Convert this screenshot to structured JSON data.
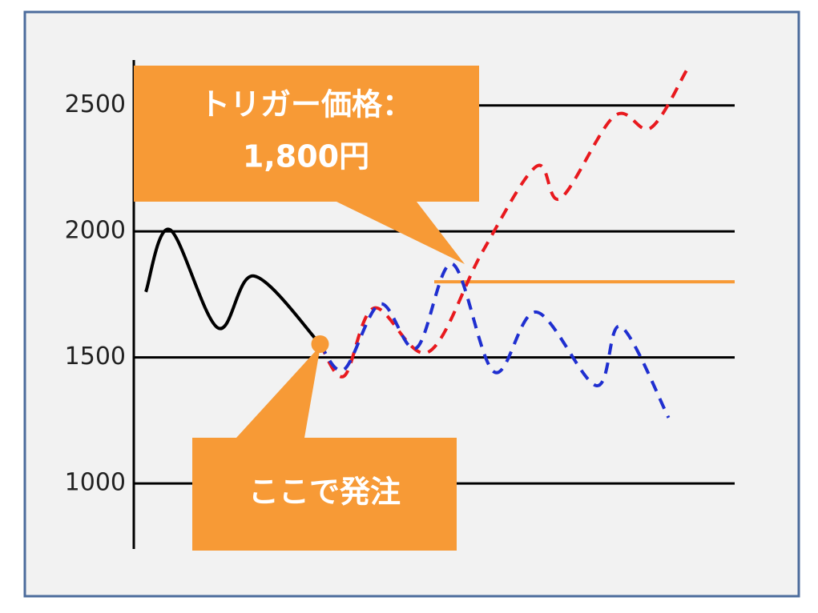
{
  "chart_data": {
    "type": "line",
    "ylim": [
      740,
      2680
    ],
    "yticks": [
      1000,
      1500,
      2000,
      2500
    ],
    "xlim": [
      0,
      100
    ],
    "grid": true,
    "series": [
      {
        "color": "#000000",
        "style": "solid",
        "x": [
          2,
          6,
          14,
          20,
          31
        ],
        "values": [
          1760,
          2007,
          1617,
          1823,
          1553
        ]
      },
      {
        "color": "#1f2fd0",
        "style": "dashed",
        "x": [
          31,
          35,
          41,
          47,
          53,
          60,
          67,
          77,
          81,
          89
        ],
        "values": [
          1553,
          1452,
          1712,
          1537,
          1871,
          1442,
          1680,
          1388,
          1623,
          1261
        ]
      },
      {
        "color": "#e8191e",
        "style": "dashed",
        "x": [
          31,
          35,
          40,
          49,
          58,
          67,
          71,
          80,
          86,
          92
        ],
        "values": [
          1553,
          1426,
          1696,
          1521,
          1918,
          2258,
          2131,
          2458,
          2410,
          2639
        ]
      }
    ],
    "trigger": {
      "lines": [
        "トリガー価格：",
        "1,800円"
      ],
      "value": 1800,
      "x": [
        50,
        100
      ],
      "color": "#f79a36"
    },
    "order": {
      "text": "ここで発注",
      "x": 31,
      "value": 1553,
      "color": "#f79a36"
    }
  }
}
